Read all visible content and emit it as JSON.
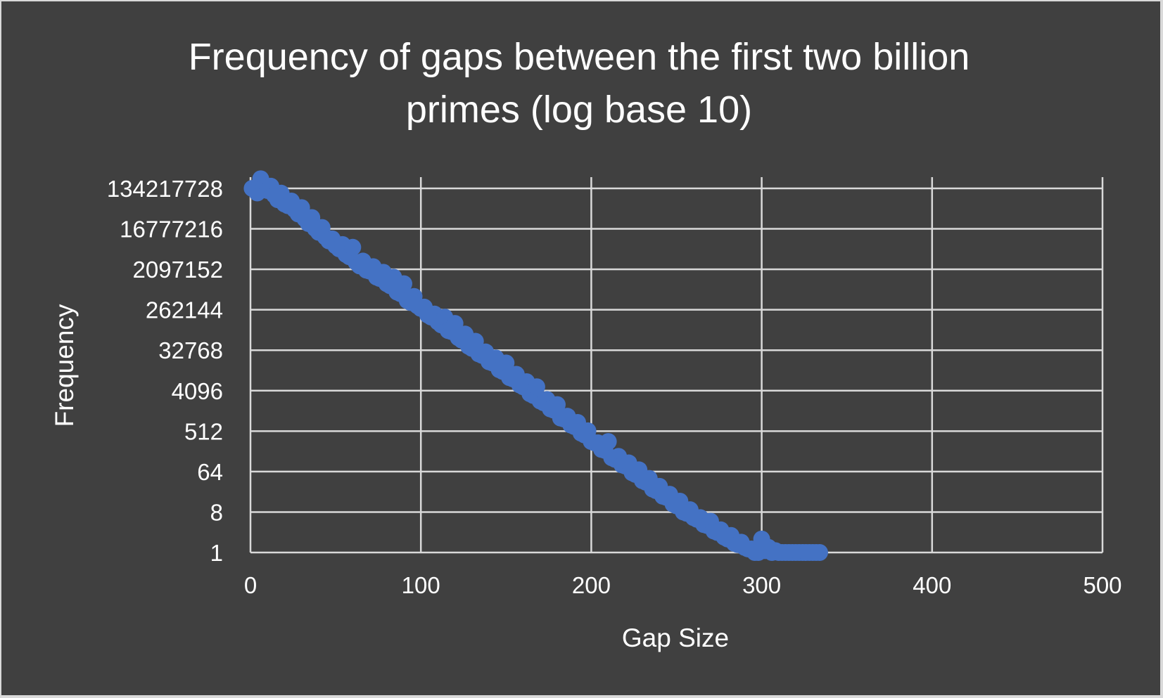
{
  "chart_data": {
    "type": "scatter",
    "title_lines": [
      "Frequency of gaps between the first two billion",
      "primes (log base 10)"
    ],
    "xlabel": "Gap Size",
    "ylabel": "Frequency",
    "xlim": [
      0,
      500
    ],
    "x_ticks": [
      "0",
      "100",
      "200",
      "300",
      "400",
      "500"
    ],
    "y_scale": "log2",
    "ylim": [
      1,
      134217728
    ],
    "y_ticks": [
      "1",
      "8",
      "64",
      "512",
      "4096",
      "32768",
      "262144",
      "2097152",
      "16777216",
      "134217728"
    ],
    "grid": true,
    "marker_color": "#4472c4",
    "background_color": "#404040",
    "series": [
      {
        "points": [
          [
            1,
            134217728
          ],
          [
            2,
            134217728
          ],
          [
            4,
            106000000
          ],
          [
            6,
            220000000
          ],
          [
            8,
            140000000
          ],
          [
            10,
            120000000
          ],
          [
            12,
            150000000
          ],
          [
            14,
            95000000
          ],
          [
            16,
            75000000
          ],
          [
            18,
            105000000
          ],
          [
            20,
            60000000
          ],
          [
            22,
            55000000
          ],
          [
            24,
            70000000
          ],
          [
            26,
            45000000
          ],
          [
            28,
            36000000
          ],
          [
            30,
            50000000
          ],
          [
            32,
            28000000
          ],
          [
            34,
            22000000
          ],
          [
            36,
            30000000
          ],
          [
            38,
            17000000
          ],
          [
            40,
            14000000
          ],
          [
            42,
            18000000
          ],
          [
            44,
            11000000
          ],
          [
            46,
            9000000
          ],
          [
            48,
            10000000
          ],
          [
            50,
            7000000
          ],
          [
            52,
            6000000
          ],
          [
            54,
            7500000
          ],
          [
            56,
            4500000
          ],
          [
            58,
            4000000
          ],
          [
            60,
            6500000
          ],
          [
            62,
            3000000
          ],
          [
            64,
            2500000
          ],
          [
            66,
            3200000
          ],
          [
            68,
            2000000
          ],
          [
            70,
            1900000
          ],
          [
            72,
            2400000
          ],
          [
            74,
            1400000
          ],
          [
            76,
            1300000
          ],
          [
            78,
            1800000
          ],
          [
            80,
            1000000
          ],
          [
            82,
            900000
          ],
          [
            84,
            1400000
          ],
          [
            86,
            650000
          ],
          [
            88,
            600000
          ],
          [
            90,
            1000000
          ],
          [
            92,
            420000
          ],
          [
            94,
            380000
          ],
          [
            96,
            520000
          ],
          [
            98,
            320000
          ],
          [
            100,
            280000
          ],
          [
            102,
            300000
          ],
          [
            104,
            200000
          ],
          [
            106,
            180000
          ],
          [
            108,
            210000
          ],
          [
            110,
            140000
          ],
          [
            112,
            120000
          ],
          [
            114,
            180000
          ],
          [
            116,
            90000
          ],
          [
            118,
            85000
          ],
          [
            120,
            130000
          ],
          [
            122,
            62000
          ],
          [
            124,
            55000
          ],
          [
            126,
            75000
          ],
          [
            128,
            40000
          ],
          [
            130,
            36000
          ],
          [
            132,
            52000
          ],
          [
            134,
            27000
          ],
          [
            136,
            25000
          ],
          [
            138,
            30000
          ],
          [
            140,
            18000
          ],
          [
            142,
            17000
          ],
          [
            144,
            22000
          ],
          [
            146,
            12000
          ],
          [
            148,
            11000
          ],
          [
            150,
            17000
          ],
          [
            152,
            8000
          ],
          [
            154,
            7500
          ],
          [
            156,
            9500
          ],
          [
            158,
            5500
          ],
          [
            160,
            5000
          ],
          [
            162,
            6500
          ],
          [
            164,
            3500
          ],
          [
            166,
            3200
          ],
          [
            168,
            5000
          ],
          [
            170,
            2400
          ],
          [
            172,
            2200
          ],
          [
            174,
            2600
          ],
          [
            176,
            1600
          ],
          [
            178,
            1500
          ],
          [
            180,
            2000
          ],
          [
            182,
            1000
          ],
          [
            184,
            950
          ],
          [
            186,
            1100
          ],
          [
            188,
            700
          ],
          [
            190,
            650
          ],
          [
            192,
            800
          ],
          [
            194,
            460
          ],
          [
            196,
            420
          ],
          [
            198,
            520
          ],
          [
            200,
            300
          ],
          [
            202,
            280
          ],
          [
            204,
            280
          ],
          [
            206,
            200
          ],
          [
            208,
            190
          ],
          [
            210,
            300
          ],
          [
            212,
            130
          ],
          [
            214,
            120
          ],
          [
            216,
            140
          ],
          [
            218,
            90
          ],
          [
            220,
            85
          ],
          [
            222,
            100
          ],
          [
            224,
            60
          ],
          [
            226,
            55
          ],
          [
            228,
            70
          ],
          [
            230,
            40
          ],
          [
            232,
            37
          ],
          [
            234,
            45
          ],
          [
            236,
            26
          ],
          [
            238,
            24
          ],
          [
            240,
            30
          ],
          [
            242,
            18
          ],
          [
            244,
            17
          ],
          [
            246,
            20
          ],
          [
            248,
            12
          ],
          [
            250,
            11
          ],
          [
            252,
            14
          ],
          [
            254,
            8
          ],
          [
            256,
            7.5
          ],
          [
            258,
            9
          ],
          [
            260,
            6
          ],
          [
            262,
            5.5
          ],
          [
            264,
            6
          ],
          [
            266,
            4.2
          ],
          [
            268,
            4
          ],
          [
            270,
            5
          ],
          [
            272,
            3
          ],
          [
            274,
            2.8
          ],
          [
            276,
            3.2
          ],
          [
            278,
            2.2
          ],
          [
            280,
            2
          ],
          [
            282,
            2.4
          ],
          [
            284,
            1.6
          ],
          [
            286,
            1.5
          ],
          [
            288,
            1.7
          ],
          [
            290,
            1.3
          ],
          [
            292,
            1.2
          ],
          [
            294,
            1.2
          ],
          [
            296,
            1
          ],
          [
            298,
            1
          ],
          [
            300,
            2
          ],
          [
            302,
            1.1
          ],
          [
            304,
            1.3
          ],
          [
            306,
            1
          ],
          [
            308,
            1.1
          ],
          [
            310,
            1
          ],
          [
            312,
            1
          ],
          [
            314,
            1
          ],
          [
            316,
            1
          ],
          [
            318,
            1
          ],
          [
            320,
            1
          ],
          [
            322,
            1
          ],
          [
            324,
            1
          ],
          [
            326,
            1
          ],
          [
            328,
            1
          ],
          [
            330,
            1
          ],
          [
            332,
            1
          ],
          [
            334,
            1
          ]
        ]
      }
    ]
  }
}
